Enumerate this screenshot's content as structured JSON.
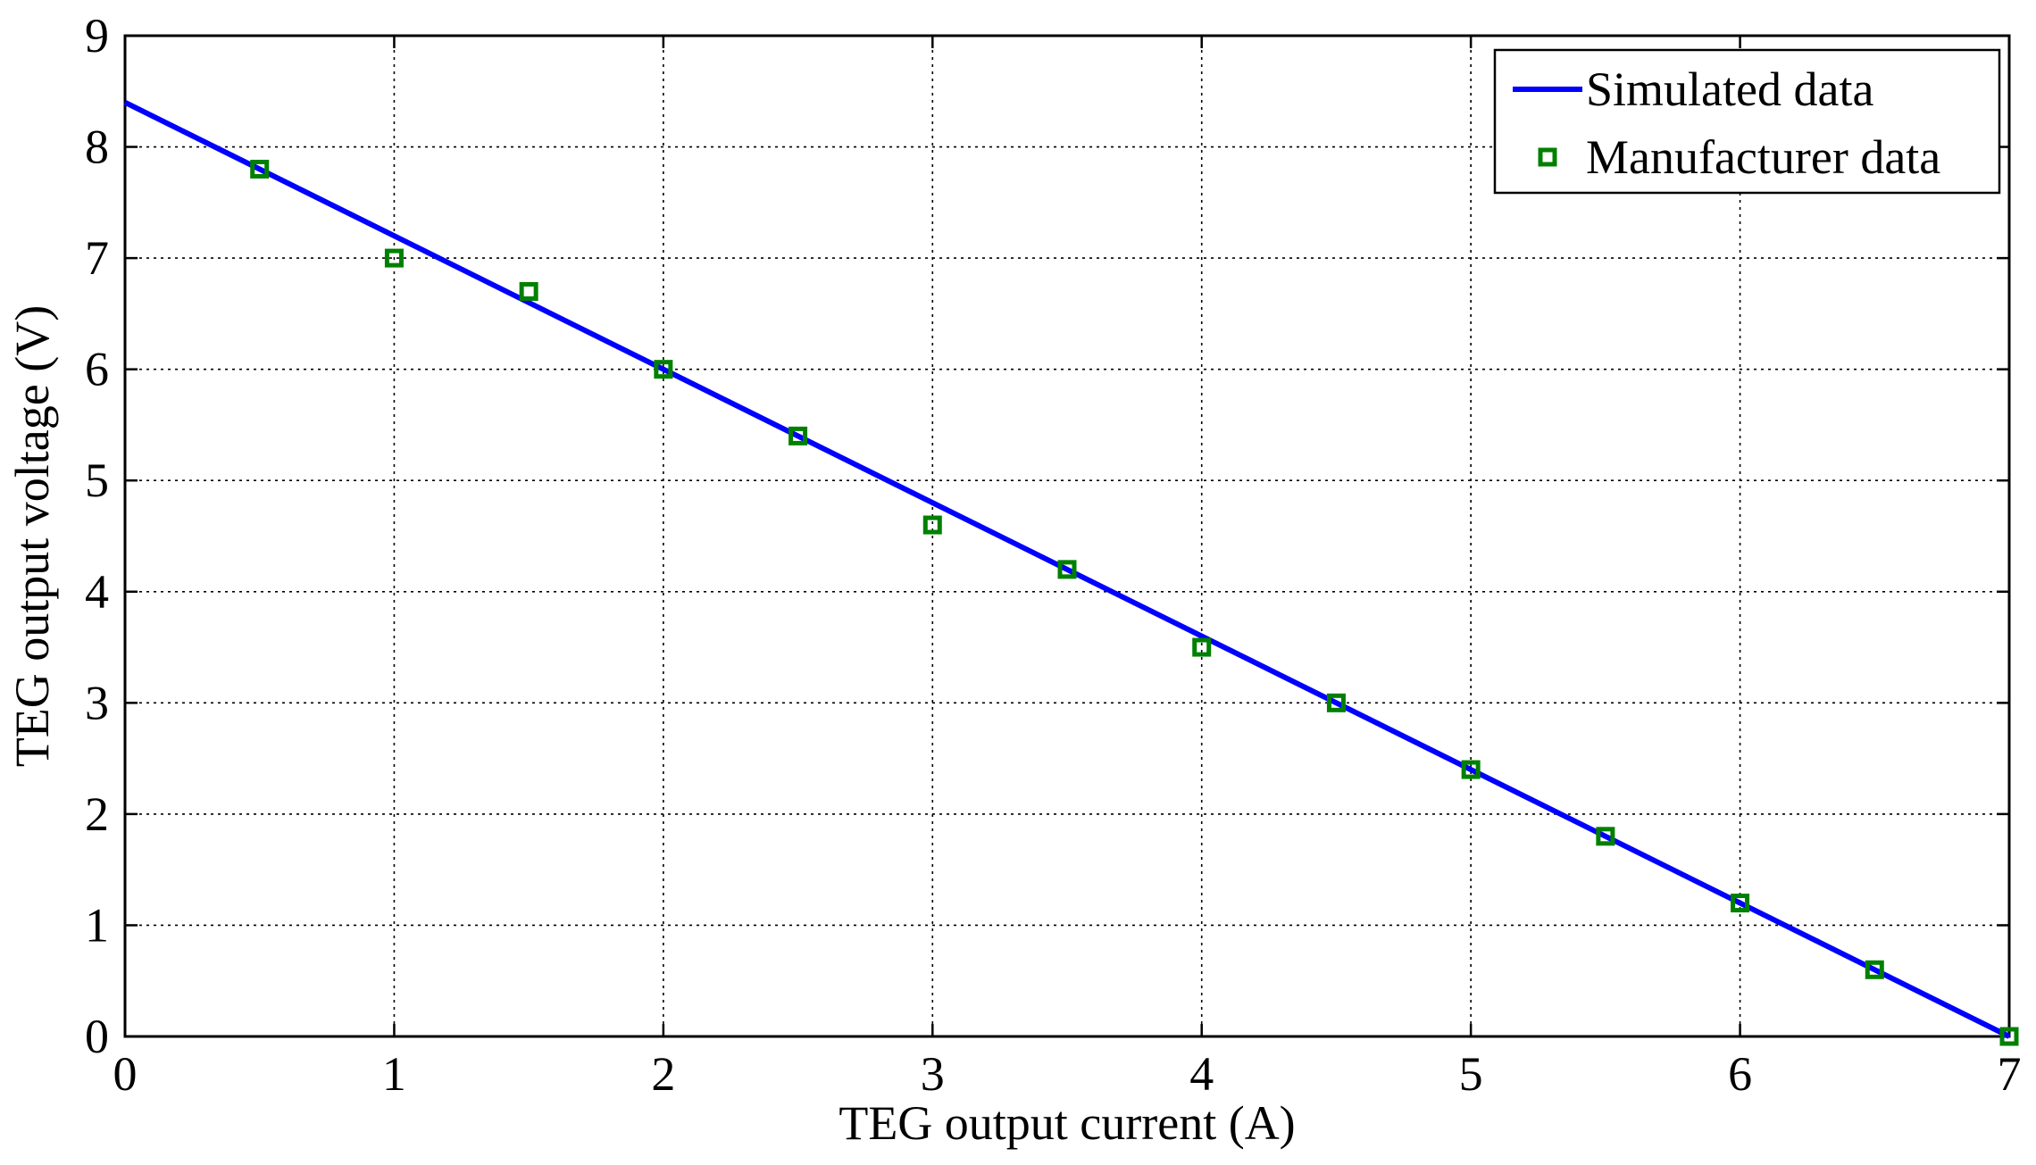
{
  "chart_data": {
    "type": "line",
    "title": "",
    "xlabel": "TEG output current (A)",
    "ylabel": "TEG output voltage (V)",
    "xlim": [
      0,
      7
    ],
    "ylim": [
      0,
      9
    ],
    "xticks": [
      "0",
      "1",
      "2",
      "3",
      "4",
      "5",
      "6",
      "7"
    ],
    "yticks": [
      "0",
      "1",
      "2",
      "3",
      "4",
      "5",
      "6",
      "7",
      "8",
      "9"
    ],
    "grid": true,
    "legend_position": "top-right",
    "series": [
      {
        "name": "Simulated data",
        "style": "line",
        "color": "#0000ff",
        "x": [
          0,
          7
        ],
        "y": [
          8.4,
          0
        ]
      },
      {
        "name": "Manufacturer data",
        "style": "square-marker",
        "color": "#008000",
        "x": [
          0.5,
          1.0,
          1.5,
          2.0,
          2.5,
          3.0,
          3.5,
          4.0,
          4.5,
          5.0,
          5.5,
          6.0,
          6.5,
          7.0
        ],
        "y": [
          7.8,
          7.0,
          6.7,
          6.0,
          5.4,
          4.6,
          4.2,
          3.5,
          3.0,
          2.4,
          1.8,
          1.2,
          0.6,
          0.0
        ]
      }
    ]
  }
}
